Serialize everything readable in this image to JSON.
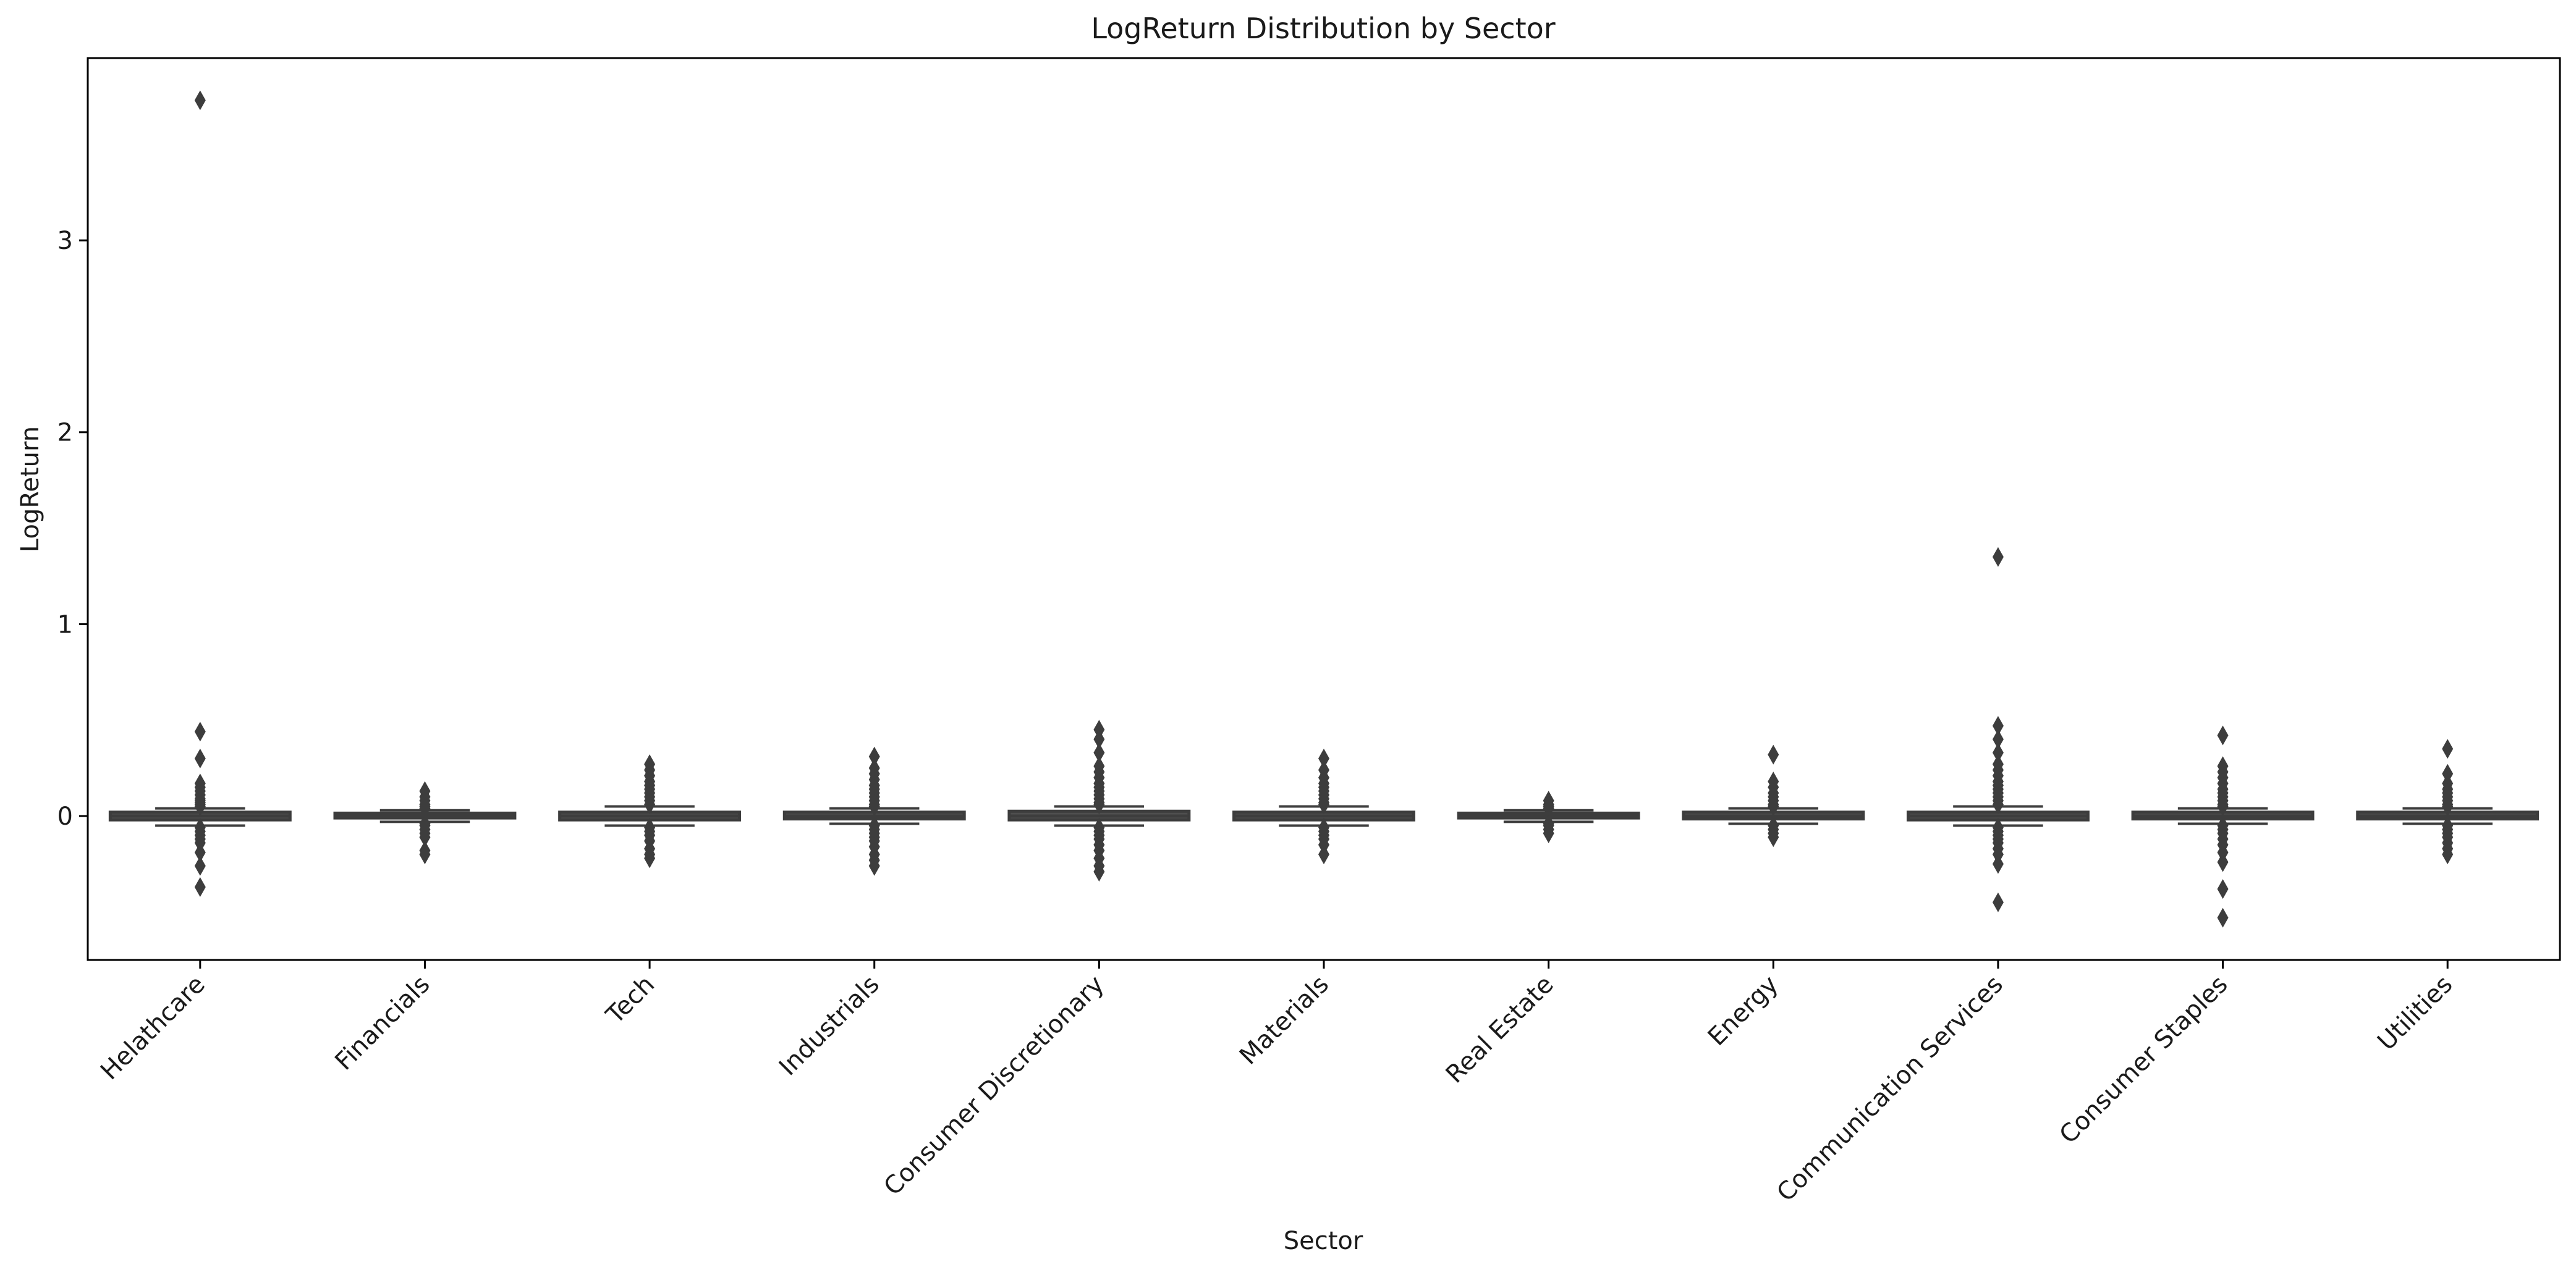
{
  "chart_data": {
    "type": "box",
    "title": "LogReturn Distribution by Sector",
    "xlabel": "Sector",
    "ylabel": "LogReturn",
    "ylim": [
      -0.75,
      3.95
    ],
    "yticks": [
      0,
      1,
      2,
      3
    ],
    "grid": false,
    "legend": "none",
    "colors": {
      "box": "#3d3d3d",
      "median": "#3d3d3d",
      "whisker": "#3d3d3d",
      "outlier": "#3d3d3d"
    },
    "categories": [
      "Helathcare",
      "Financials",
      "Tech",
      "Industrials",
      "Consumer Discretionary",
      "Materials",
      "Real Estate",
      "Energy",
      "Communication Services",
      "Consumer Staples",
      "Utilities"
    ],
    "boxes": [
      {
        "q1": -0.02,
        "median": 0.0,
        "q3": 0.02,
        "whisker_low": -0.05,
        "whisker_high": 0.04,
        "outliers": [
          3.73,
          0.44,
          0.3,
          0.17,
          0.15,
          0.13,
          0.11,
          0.09,
          0.08,
          0.07,
          0.06,
          0.05,
          -0.06,
          -0.08,
          -0.1,
          -0.12,
          -0.14,
          -0.19,
          -0.26,
          -0.37
        ]
      },
      {
        "q1": -0.01,
        "median": 0.0,
        "q3": 0.015,
        "whisker_low": -0.03,
        "whisker_high": 0.03,
        "outliers": [
          0.13,
          0.1,
          0.08,
          0.06,
          0.05,
          0.04,
          -0.04,
          -0.05,
          -0.07,
          -0.09,
          -0.11,
          -0.18,
          -0.2
        ]
      },
      {
        "q1": -0.02,
        "median": 0.0,
        "q3": 0.02,
        "whisker_low": -0.05,
        "whisker_high": 0.05,
        "outliers": [
          0.27,
          0.24,
          0.21,
          0.18,
          0.16,
          0.14,
          0.12,
          0.1,
          0.08,
          0.06,
          -0.06,
          -0.08,
          -0.1,
          -0.13,
          -0.17,
          -0.2,
          -0.22
        ]
      },
      {
        "q1": -0.015,
        "median": 0.0,
        "q3": 0.02,
        "whisker_low": -0.04,
        "whisker_high": 0.04,
        "outliers": [
          0.31,
          0.25,
          0.22,
          0.19,
          0.16,
          0.14,
          0.12,
          0.1,
          0.08,
          0.06,
          0.05,
          -0.05,
          -0.07,
          -0.09,
          -0.11,
          -0.13,
          -0.16,
          -0.2,
          -0.23,
          -0.26
        ]
      },
      {
        "q1": -0.02,
        "median": 0.0,
        "q3": 0.025,
        "whisker_low": -0.05,
        "whisker_high": 0.05,
        "outliers": [
          0.45,
          0.4,
          0.33,
          0.26,
          0.23,
          0.2,
          0.17,
          0.15,
          0.13,
          0.11,
          0.09,
          0.07,
          0.06,
          -0.06,
          -0.08,
          -0.1,
          -0.12,
          -0.15,
          -0.18,
          -0.22,
          -0.26,
          -0.29
        ]
      },
      {
        "q1": -0.02,
        "median": 0.0,
        "q3": 0.02,
        "whisker_low": -0.05,
        "whisker_high": 0.05,
        "outliers": [
          0.3,
          0.24,
          0.2,
          0.17,
          0.15,
          0.13,
          0.11,
          0.09,
          0.07,
          0.06,
          -0.06,
          -0.08,
          -0.1,
          -0.12,
          -0.15,
          -0.2
        ]
      },
      {
        "q1": -0.01,
        "median": 0.0,
        "q3": 0.015,
        "whisker_low": -0.03,
        "whisker_high": 0.03,
        "outliers": [
          0.08,
          0.06,
          0.05,
          0.04,
          -0.04,
          -0.05,
          -0.07,
          -0.09
        ]
      },
      {
        "q1": -0.015,
        "median": 0.0,
        "q3": 0.02,
        "whisker_low": -0.04,
        "whisker_high": 0.04,
        "outliers": [
          0.32,
          0.18,
          0.15,
          0.12,
          0.1,
          0.08,
          0.06,
          0.05,
          -0.05,
          -0.07,
          -0.09,
          -0.11
        ]
      },
      {
        "q1": -0.02,
        "median": 0.0,
        "q3": 0.02,
        "whisker_low": -0.05,
        "whisker_high": 0.05,
        "outliers": [
          1.35,
          0.47,
          0.4,
          0.33,
          0.27,
          0.24,
          0.21,
          0.18,
          0.16,
          0.14,
          0.12,
          0.1,
          0.08,
          0.06,
          -0.06,
          -0.08,
          -0.1,
          -0.12,
          -0.14,
          -0.17,
          -0.2,
          -0.25,
          -0.45
        ]
      },
      {
        "q1": -0.015,
        "median": 0.0,
        "q3": 0.02,
        "whisker_low": -0.04,
        "whisker_high": 0.04,
        "outliers": [
          0.42,
          0.26,
          0.23,
          0.2,
          0.17,
          0.14,
          0.12,
          0.1,
          0.08,
          0.06,
          0.05,
          -0.05,
          -0.07,
          -0.09,
          -0.12,
          -0.15,
          -0.19,
          -0.24,
          -0.38,
          -0.53
        ]
      },
      {
        "q1": -0.015,
        "median": 0.0,
        "q3": 0.02,
        "whisker_low": -0.04,
        "whisker_high": 0.04,
        "outliers": [
          0.35,
          0.22,
          0.17,
          0.14,
          0.12,
          0.1,
          0.08,
          0.06,
          0.05,
          -0.05,
          -0.07,
          -0.09,
          -0.11,
          -0.14,
          -0.17,
          -0.2
        ]
      }
    ]
  }
}
